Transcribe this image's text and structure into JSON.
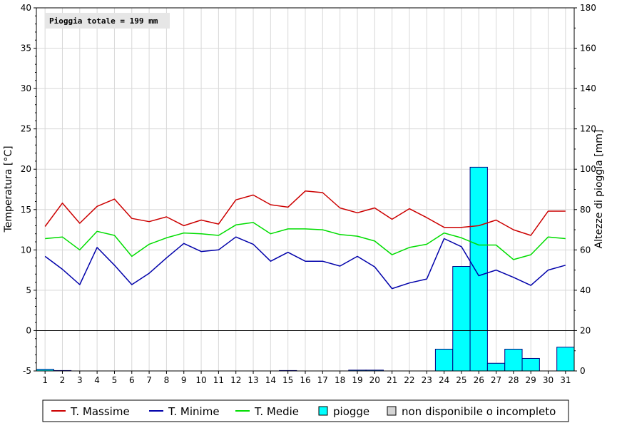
{
  "chart_data": {
    "type": "line",
    "info_box": "Pioggia totale = 199 mm",
    "xlabel": "",
    "ylabel_left": "Temperatura [°C]",
    "ylabel_right": "Altezze di pioggia [mm]",
    "ylim_left": [
      -5,
      40
    ],
    "ylim_right": [
      0,
      180
    ],
    "yticks_left": [
      "-5",
      "0",
      "5",
      "10",
      "15",
      "20",
      "25",
      "30",
      "35",
      "40"
    ],
    "yticks_right": [
      "0",
      "20",
      "40",
      "60",
      "80",
      "100",
      "120",
      "140",
      "160",
      "180"
    ],
    "categories": [
      "1",
      "2",
      "3",
      "4",
      "5",
      "6",
      "7",
      "8",
      "9",
      "10",
      "11",
      "12",
      "13",
      "14",
      "15",
      "16",
      "17",
      "18",
      "19",
      "20",
      "21",
      "22",
      "23",
      "24",
      "25",
      "26",
      "27",
      "28",
      "29",
      "30",
      "31"
    ],
    "grid": true,
    "legend_position": "bottom",
    "series": [
      {
        "name": "T. Massime",
        "color": "#cc0000",
        "axis": "left",
        "values": [
          12.9,
          15.8,
          13.3,
          15.4,
          16.3,
          13.9,
          13.5,
          14.1,
          13.0,
          13.7,
          13.2,
          16.2,
          16.8,
          15.6,
          15.3,
          17.3,
          17.1,
          15.2,
          14.6,
          15.2,
          13.8,
          15.1,
          14.0,
          12.8,
          12.8,
          13.0,
          13.7,
          12.5,
          11.8,
          14.8,
          14.8
        ]
      },
      {
        "name": "T. Minime",
        "color": "#0000aa",
        "axis": "left",
        "values": [
          9.2,
          7.6,
          5.7,
          10.3,
          8.1,
          5.7,
          7.1,
          9.0,
          10.8,
          9.8,
          10.0,
          11.6,
          10.7,
          8.6,
          9.7,
          8.6,
          8.6,
          8.0,
          9.2,
          7.9,
          5.2,
          5.9,
          6.4,
          11.4,
          10.4,
          6.8,
          7.5,
          6.6,
          5.6,
          7.5,
          8.1
        ]
      },
      {
        "name": "T. Medie",
        "color": "#00dd00",
        "axis": "left",
        "values": [
          11.4,
          11.6,
          10.0,
          12.3,
          11.8,
          9.2,
          10.7,
          11.5,
          12.1,
          12.0,
          11.8,
          13.1,
          13.4,
          12.0,
          12.6,
          12.6,
          12.5,
          11.9,
          11.7,
          11.1,
          9.4,
          10.3,
          10.7,
          12.1,
          11.5,
          10.6,
          10.6,
          8.8,
          9.4,
          11.6,
          11.4
        ]
      },
      {
        "name": "piogge",
        "color": "#00ffff",
        "axis": "right",
        "type": "bar",
        "values": [
          0.8,
          0.2,
          0,
          0,
          0,
          0,
          0,
          0,
          0,
          0,
          0,
          0,
          0,
          0,
          0.2,
          0,
          0,
          0,
          0.4,
          0.4,
          0,
          0,
          0,
          10.8,
          51.8,
          101.0,
          3.8,
          10.8,
          6.2,
          0,
          11.8
        ]
      }
    ],
    "legend": [
      {
        "label": "T. Massime",
        "kind": "line",
        "color": "#cc0000"
      },
      {
        "label": "T. Minime",
        "kind": "line",
        "color": "#0000aa"
      },
      {
        "label": "T. Medie",
        "kind": "line",
        "color": "#00dd00"
      },
      {
        "label": "piogge",
        "kind": "box",
        "color": "#00ffff"
      },
      {
        "label": "non disponibile o incompleto",
        "kind": "box",
        "color": "#d4d4d4"
      }
    ]
  }
}
